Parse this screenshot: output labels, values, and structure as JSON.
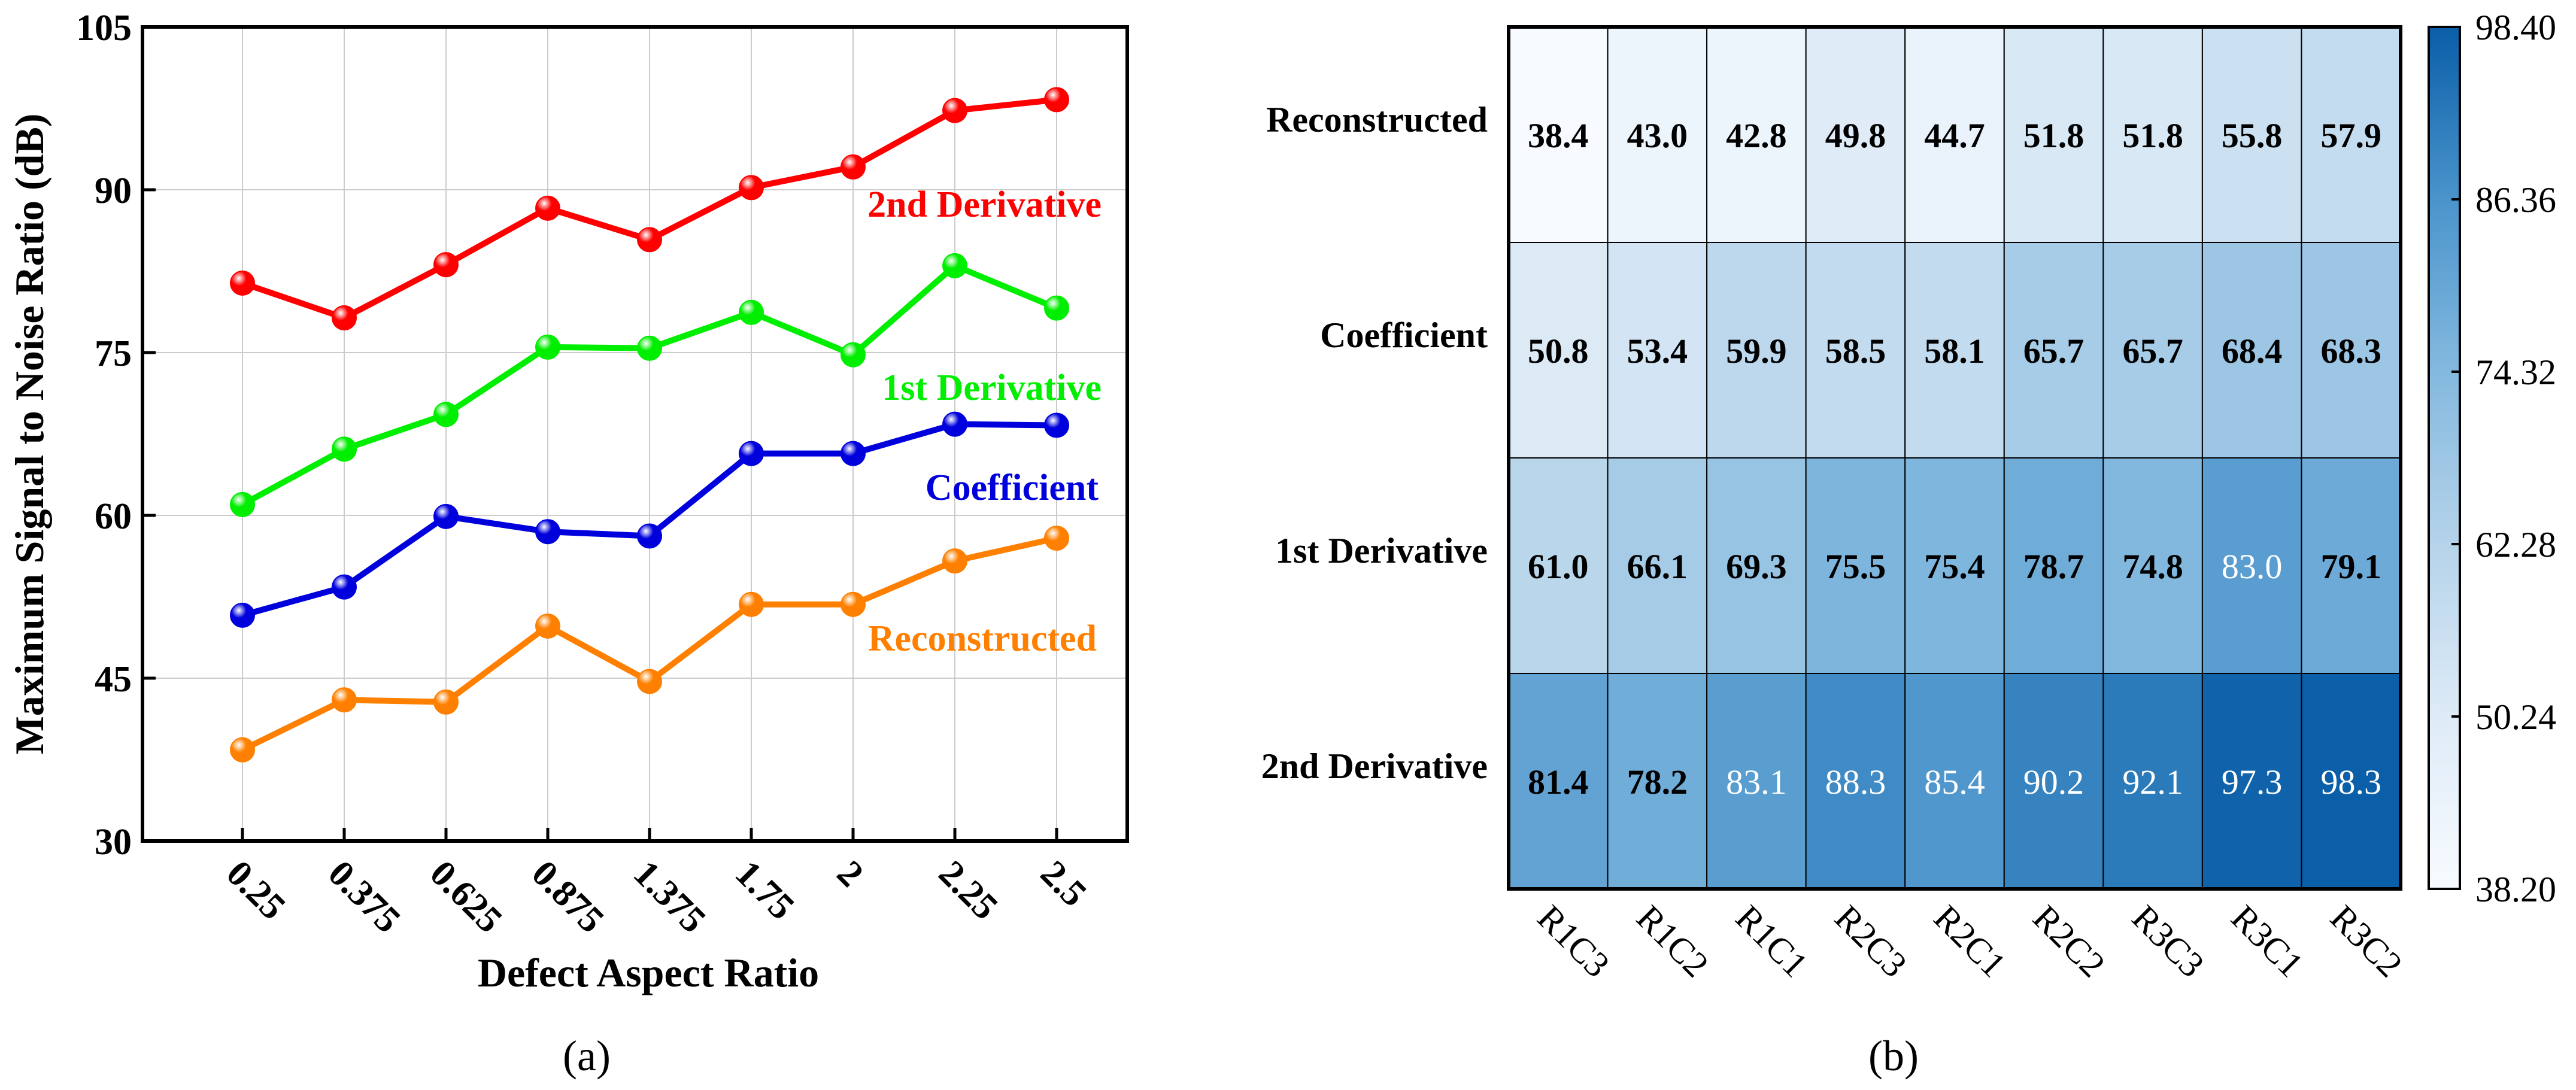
{
  "panels": {
    "a_label": "(a)",
    "b_label": "(b)"
  },
  "chart_data": [
    {
      "type": "line",
      "title": "",
      "xlabel": "Defect Aspect Ratio",
      "ylabel": "Maximum Signal to Noise Ratio (dB)",
      "ylim": [
        30,
        105
      ],
      "yticks": [
        30,
        45,
        60,
        75,
        90,
        105
      ],
      "grid": true,
      "categories": [
        "0.25",
        "0.375",
        "0.625",
        "0.875",
        "1.375",
        "1.75",
        "2",
        "2.25",
        "2.5"
      ],
      "series": [
        {
          "name": "2nd Derivative",
          "color": "#ff0000",
          "values": [
            81.4,
            78.2,
            83.1,
            88.3,
            85.4,
            90.2,
            92.1,
            97.3,
            98.3
          ]
        },
        {
          "name": "1st Derivative",
          "color": "#00ee00",
          "values": [
            61.0,
            66.1,
            69.3,
            75.5,
            75.4,
            78.7,
            74.8,
            83.0,
            79.1
          ]
        },
        {
          "name": "Coefficient",
          "color": "#0000dd",
          "values": [
            50.8,
            53.4,
            59.9,
            58.5,
            58.1,
            65.7,
            65.7,
            68.4,
            68.3
          ]
        },
        {
          "name": "Reconstructed",
          "color": "#ff8000",
          "values": [
            38.4,
            43.0,
            42.8,
            49.8,
            44.7,
            51.8,
            51.8,
            55.8,
            57.9
          ]
        }
      ]
    },
    {
      "type": "heatmap",
      "title": "",
      "rows": [
        "Reconstructed",
        "Coefficient",
        "1st Derivative",
        "2nd Derivative"
      ],
      "columns": [
        "R1C3",
        "R1C2",
        "R1C1",
        "R2C3",
        "R2C1",
        "R2C2",
        "R3C3",
        "R3C1",
        "R3C2"
      ],
      "values": [
        [
          38.4,
          43.0,
          42.8,
          49.8,
          44.7,
          51.8,
          51.8,
          55.8,
          57.9
        ],
        [
          50.8,
          53.4,
          59.9,
          58.5,
          58.1,
          65.7,
          65.7,
          68.4,
          68.3
        ],
        [
          61.0,
          66.1,
          69.3,
          75.5,
          75.4,
          78.7,
          74.8,
          83.0,
          79.1
        ],
        [
          81.4,
          78.2,
          83.1,
          88.3,
          85.4,
          90.2,
          92.1,
          97.3,
          98.3
        ]
      ],
      "colorbar": {
        "min": 38.2,
        "max": 98.4,
        "tick_labels": [
          "98.40",
          "86.36",
          "74.32",
          "62.28",
          "50.24",
          "38.20"
        ],
        "tick_values": [
          98.4,
          86.36,
          74.32,
          62.28,
          50.24,
          38.2
        ],
        "colormap": "Blues",
        "low_color": "#f7fbff",
        "high_color": "#08519c"
      }
    }
  ]
}
